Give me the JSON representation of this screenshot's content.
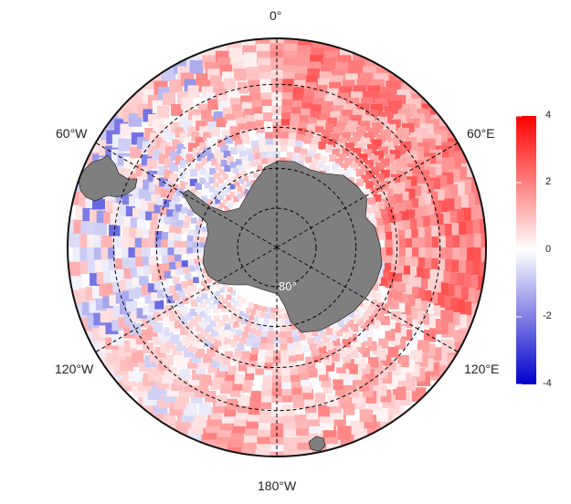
{
  "map": {
    "projection": "south-polar-stereographic",
    "outer_latitude_boundary": -40,
    "latitude_circles": [
      -80,
      -70,
      -60,
      -50
    ],
    "longitude_lines": [
      0,
      60,
      120,
      180,
      -120,
      -60
    ],
    "land_color": "#7f7f7f",
    "graticule_style": "dashed",
    "lon_labels": {
      "lon_0": "0°",
      "lon_60e": "60°E",
      "lon_120e": "120°E",
      "lon_180": "180°W",
      "lon_120w": "120°W",
      "lon_60w": "60°W"
    },
    "lat_labels": {
      "lat_80": "80°"
    }
  },
  "colorbar": {
    "min": -4,
    "max": 4,
    "colors": {
      "low": "#0000cc",
      "mid": "#ffffff",
      "high": "#ff0000"
    },
    "ticks": [
      "4",
      "2",
      "0",
      "-2",
      "-4"
    ]
  }
}
